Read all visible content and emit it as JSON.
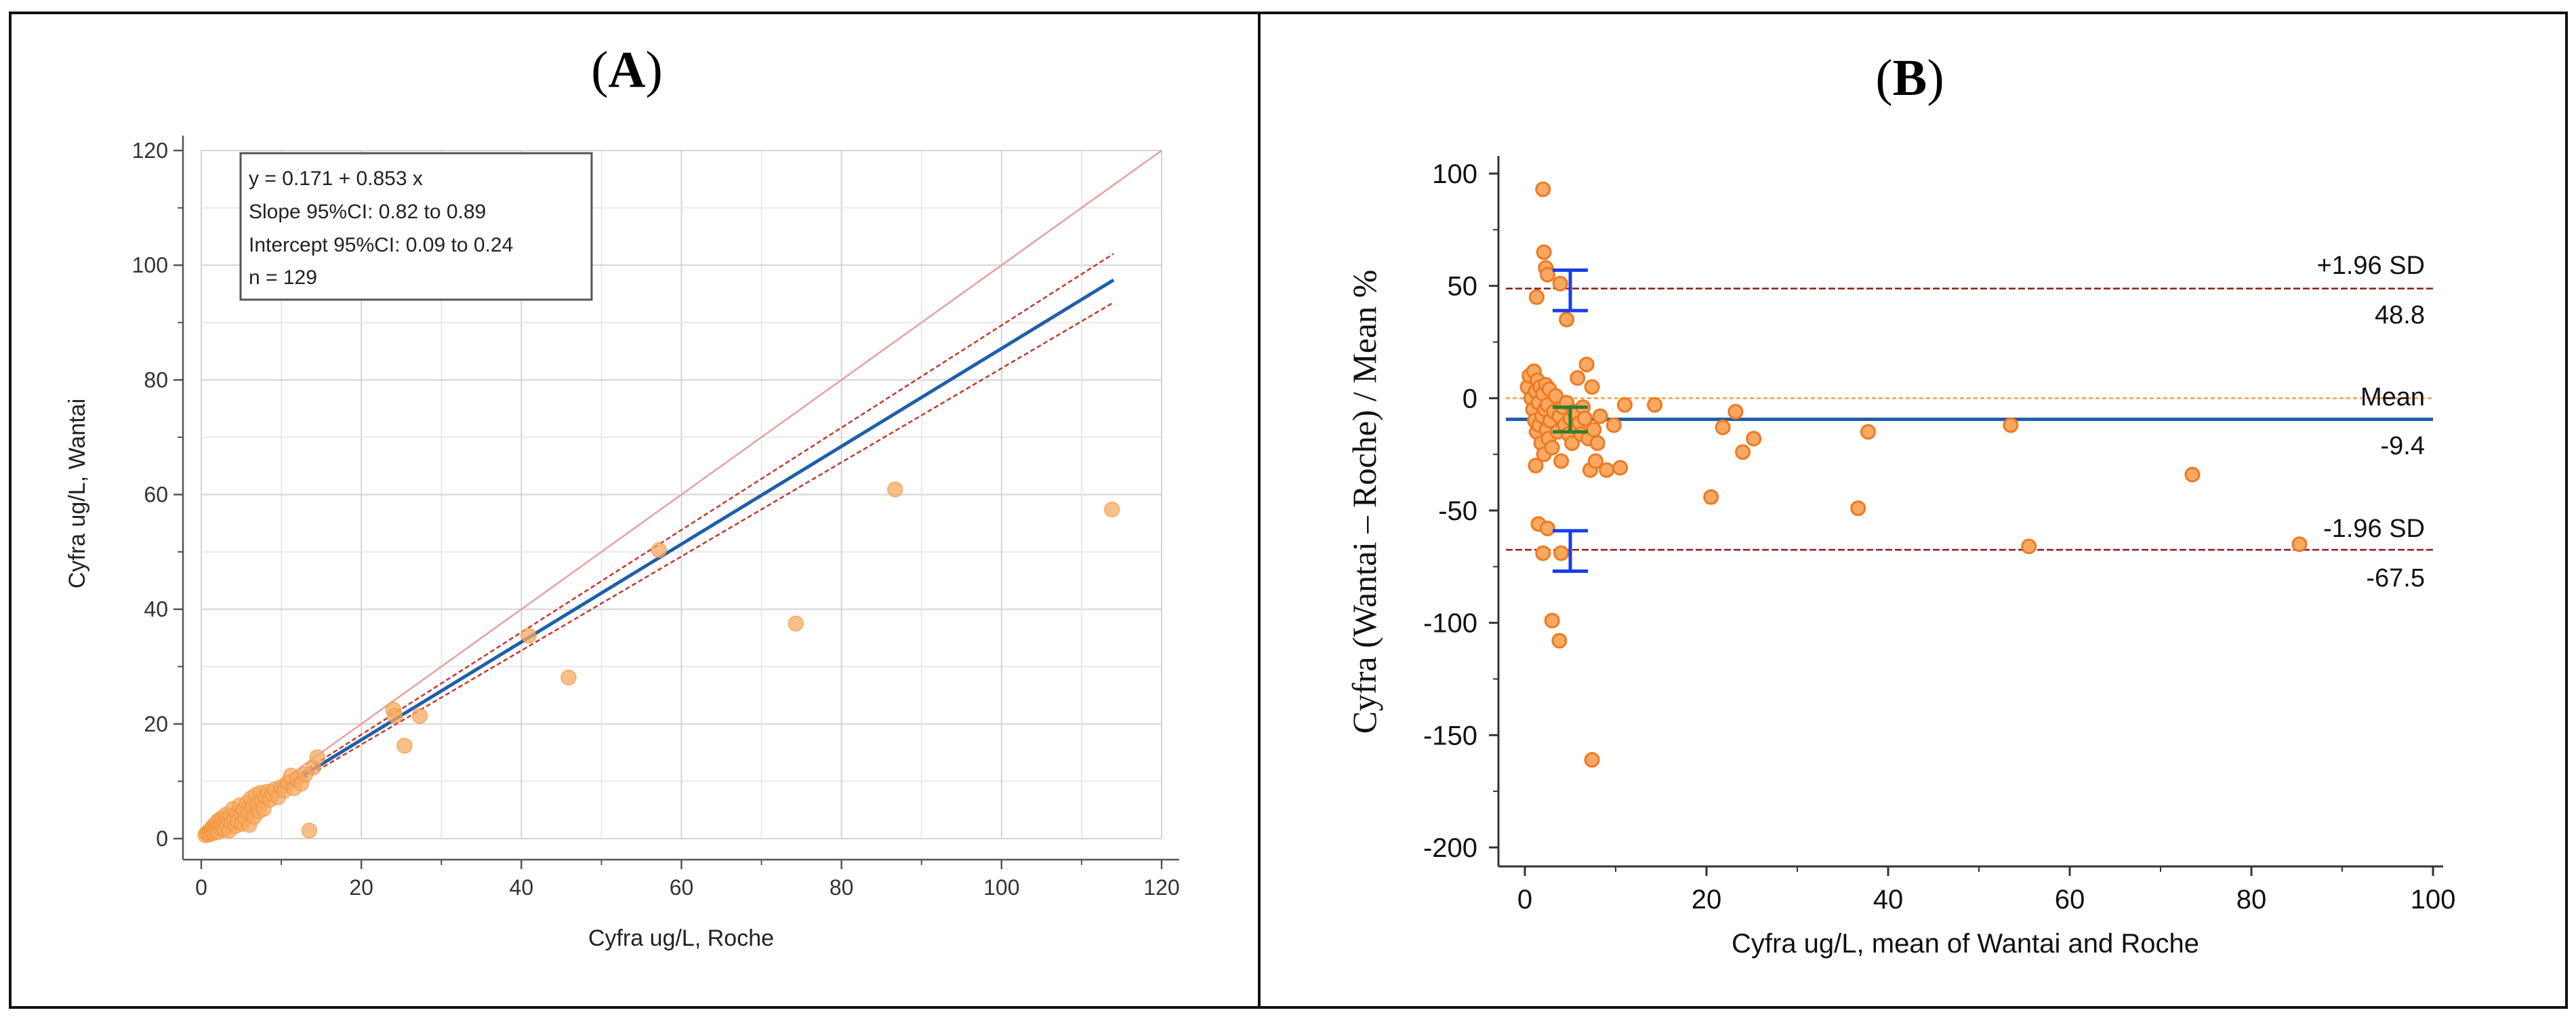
{
  "panel_a": {
    "label_open": "(",
    "label_letter": "A",
    "label_close": ")",
    "legend": [
      "y = 0.171 + 0.853 x",
      "Slope 95%CI: 0.82 to 0.89",
      "Intercept 95%CI: 0.09 to 0.24",
      "n = 129"
    ]
  },
  "panel_b": {
    "label_open": "(",
    "label_letter": "B",
    "label_close": ")",
    "upper_label": "+1.96 SD",
    "upper_value": "48.8",
    "mean_label": "Mean",
    "mean_value": "-9.4",
    "lower_label": "-1.96 SD",
    "lower_value": "-67.5"
  },
  "chart_data": [
    {
      "type": "scatter",
      "xlabel": "Cyfra ug/L, Roche",
      "ylabel": "Cyfra ug/L, Wantai",
      "xlim": [
        0,
        120
      ],
      "ylim": [
        0,
        120
      ],
      "xticks": [
        "0",
        "20",
        "40",
        "60",
        "80",
        "100",
        "120"
      ],
      "yticks": [
        "0",
        "20",
        "40",
        "60",
        "80",
        "100",
        "120"
      ],
      "grid": true,
      "colors": {
        "points": "#f7a962",
        "point_edge": "#f08a2c",
        "regression": "#1f5fa8",
        "ci": "#c0392b",
        "identity": "#e8a0a0"
      },
      "regression": {
        "intercept": 0.171,
        "slope": 0.853,
        "x_range": [
          0,
          114
        ]
      },
      "ci_upper": [
        [
          0,
          0.3
        ],
        [
          114,
          102
        ]
      ],
      "ci_lower": [
        [
          0,
          0.0
        ],
        [
          114,
          93.5
        ]
      ],
      "identity_line": [
        [
          0,
          0
        ],
        [
          120,
          120
        ]
      ],
      "points": [
        [
          0.5,
          0.6
        ],
        [
          0.7,
          0.9
        ],
        [
          0.9,
          1.2
        ],
        [
          1.0,
          0.7
        ],
        [
          1.1,
          1.4
        ],
        [
          1.2,
          1.0
        ],
        [
          1.3,
          1.8
        ],
        [
          1.4,
          1.2
        ],
        [
          1.5,
          2.2
        ],
        [
          1.6,
          1.0
        ],
        [
          1.7,
          1.6
        ],
        [
          1.8,
          2.5
        ],
        [
          1.9,
          1.4
        ],
        [
          2.0,
          3.0
        ],
        [
          2.1,
          2.0
        ],
        [
          2.2,
          1.2
        ],
        [
          2.3,
          2.6
        ],
        [
          2.4,
          3.4
        ],
        [
          2.5,
          1.8
        ],
        [
          2.6,
          2.4
        ],
        [
          2.7,
          3.6
        ],
        [
          2.8,
          2.1
        ],
        [
          2.9,
          1.6
        ],
        [
          3.0,
          3.0
        ],
        [
          3.1,
          4.2
        ],
        [
          3.2,
          2.4
        ],
        [
          3.4,
          3.2
        ],
        [
          3.5,
          1.4
        ],
        [
          3.6,
          4.0
        ],
        [
          3.8,
          2.8
        ],
        [
          4.0,
          5.2
        ],
        [
          4.1,
          3.4
        ],
        [
          4.3,
          2.2
        ],
        [
          4.5,
          4.4
        ],
        [
          4.6,
          3.0
        ],
        [
          4.8,
          5.8
        ],
        [
          5.0,
          4.2
        ],
        [
          5.1,
          2.6
        ],
        [
          5.3,
          5.0
        ],
        [
          5.5,
          3.6
        ],
        [
          5.7,
          6.2
        ],
        [
          5.9,
          4.6
        ],
        [
          6.0,
          2.4
        ],
        [
          6.2,
          7.0
        ],
        [
          6.4,
          5.4
        ],
        [
          6.6,
          3.8
        ],
        [
          6.8,
          7.6
        ],
        [
          7.0,
          6.0
        ],
        [
          7.2,
          4.8
        ],
        [
          7.4,
          8.0
        ],
        [
          7.6,
          6.6
        ],
        [
          7.8,
          5.2
        ],
        [
          8.0,
          7.4
        ],
        [
          8.3,
          8.2
        ],
        [
          8.6,
          6.8
        ],
        [
          8.9,
          7.8
        ],
        [
          9.2,
          8.6
        ],
        [
          9.6,
          7.2
        ],
        [
          10.0,
          9.0
        ],
        [
          10.4,
          8.4
        ],
        [
          10.8,
          9.8
        ],
        [
          11.2,
          11.0
        ],
        [
          11.6,
          8.8
        ],
        [
          12.0,
          10.4
        ],
        [
          12.5,
          9.6
        ],
        [
          13.0,
          11.2
        ],
        [
          13.5,
          1.4
        ],
        [
          14.0,
          12.4
        ],
        [
          14.5,
          14.2
        ],
        [
          24.0,
          22.5
        ],
        [
          24.2,
          21.4
        ],
        [
          25.4,
          16.2
        ],
        [
          27.3,
          21.4
        ],
        [
          40.9,
          35.4
        ],
        [
          45.9,
          28.1
        ],
        [
          57.2,
          50.3
        ],
        [
          74.3,
          37.5
        ],
        [
          86.7,
          60.9
        ],
        [
          113.8,
          57.4
        ]
      ]
    },
    {
      "type": "scatter",
      "xlabel": "Cyfra ug/L, mean of Wantai and Roche",
      "ylabel": "Cyfra (Wantai – Roche) / Mean %",
      "xlim": [
        0,
        100
      ],
      "ylim": [
        -200,
        100
      ],
      "xticks": [
        "0",
        "20",
        "40",
        "60",
        "80",
        "100"
      ],
      "yticks": [
        "100",
        "50",
        "0",
        "-50",
        "-100",
        "-150",
        "-200"
      ],
      "grid": false,
      "colors": {
        "points": "#f7a962",
        "point_edge": "#f07820",
        "mean": "#1f5fa8",
        "limits": "#8b1a1a",
        "zero": "#f0a040",
        "ci_limits": "#1a3ee8",
        "ci_mean": "#2e7d32"
      },
      "mean": -9.4,
      "upper_loa": 48.8,
      "lower_loa": -67.5,
      "ci_bars": [
        {
          "name": "upper",
          "x": 5,
          "low": 39,
          "high": 57
        },
        {
          "name": "mean",
          "x": 5,
          "low": -15,
          "high": -4
        },
        {
          "name": "lower",
          "x": 5,
          "low": -77,
          "high": -59
        }
      ],
      "points": [
        [
          2.0,
          93
        ],
        [
          2.1,
          65
        ],
        [
          2.3,
          58
        ],
        [
          2.5,
          55
        ],
        [
          3.9,
          51
        ],
        [
          1.3,
          45
        ],
        [
          4.6,
          35
        ],
        [
          0.3,
          5
        ],
        [
          0.5,
          10
        ],
        [
          0.7,
          0
        ],
        [
          0.9,
          -5
        ],
        [
          1.0,
          12
        ],
        [
          1.1,
          -10
        ],
        [
          1.2,
          3
        ],
        [
          1.3,
          -15
        ],
        [
          1.4,
          8
        ],
        [
          1.5,
          -2
        ],
        [
          1.6,
          -12
        ],
        [
          1.7,
          5
        ],
        [
          1.8,
          -20
        ],
        [
          1.9,
          -8
        ],
        [
          2.0,
          2
        ],
        [
          2.1,
          -25
        ],
        [
          2.2,
          -5
        ],
        [
          2.3,
          6
        ],
        [
          2.4,
          -14
        ],
        [
          2.5,
          -3
        ],
        [
          2.6,
          -18
        ],
        [
          2.7,
          4
        ],
        [
          2.8,
          -10
        ],
        [
          3.0,
          -22
        ],
        [
          3.2,
          -6
        ],
        [
          3.4,
          1
        ],
        [
          3.6,
          -15
        ],
        [
          3.8,
          -8
        ],
        [
          4.0,
          -28
        ],
        [
          4.2,
          -4
        ],
        [
          4.4,
          -12
        ],
        [
          4.6,
          -2
        ],
        [
          4.8,
          -16
        ],
        [
          5.0,
          -9
        ],
        [
          5.2,
          -20
        ],
        [
          5.4,
          -6
        ],
        [
          5.6,
          -13
        ],
        [
          5.8,
          9
        ],
        [
          6.0,
          -11
        ],
        [
          6.2,
          -16
        ],
        [
          6.4,
          -4
        ],
        [
          6.6,
          -9
        ],
        [
          6.8,
          15
        ],
        [
          7.0,
          -18
        ],
        [
          7.2,
          -32
        ],
        [
          7.4,
          5
        ],
        [
          7.6,
          -14
        ],
        [
          7.8,
          -28
        ],
        [
          8.0,
          -20
        ],
        [
          8.3,
          -8
        ],
        [
          9.0,
          -32
        ],
        [
          9.8,
          -12
        ],
        [
          10.5,
          -31
        ],
        [
          11.0,
          -3
        ],
        [
          1.2,
          -30
        ],
        [
          1.5,
          -56
        ],
        [
          2.5,
          -58
        ],
        [
          2.0,
          -69
        ],
        [
          4.0,
          -69
        ],
        [
          3.0,
          -99
        ],
        [
          3.8,
          -108
        ],
        [
          7.4,
          -161
        ],
        [
          14.3,
          -3
        ],
        [
          20.5,
          -44
        ],
        [
          21.8,
          -13
        ],
        [
          23.2,
          -6
        ],
        [
          24.0,
          -24
        ],
        [
          25.2,
          -18
        ],
        [
          36.7,
          -49
        ],
        [
          37.8,
          -15
        ],
        [
          53.5,
          -12
        ],
        [
          55.5,
          -66
        ],
        [
          73.5,
          -34
        ],
        [
          85.3,
          -65
        ]
      ]
    }
  ]
}
